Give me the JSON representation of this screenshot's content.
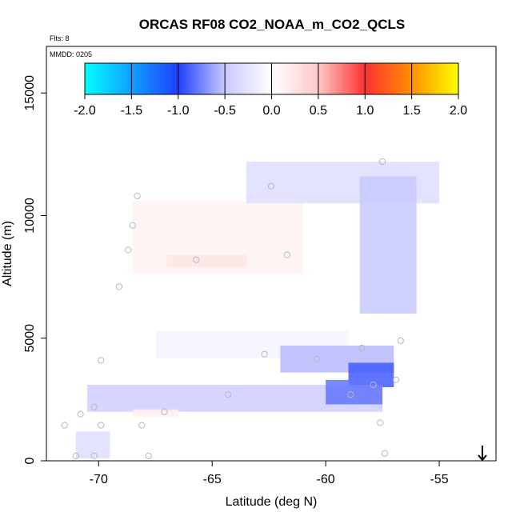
{
  "chart_data": {
    "type": "heatmap",
    "title": "ORCAS RF08 CO2_NOAA_m_CO2_QCLS",
    "flights_label": "Flts: 8",
    "date_label": "MMDD: 0205",
    "xlabel": "Latitude (deg N)",
    "ylabel": "Altitude (m)",
    "xlim": [
      -72.3,
      -52.5
    ],
    "ylim": [
      0,
      16900
    ],
    "x_ticks": [
      -70,
      -65,
      -60,
      -55
    ],
    "x_tick_labels": [
      "-70",
      "-65",
      "-60",
      "-55"
    ],
    "y_ticks": [
      0,
      5000,
      10000,
      15000
    ],
    "y_tick_labels": [
      "0",
      "5000",
      "10000",
      "15000"
    ],
    "colorbar": {
      "min": -2.0,
      "max": 2.0,
      "ticks": [
        -2.0,
        -1.5,
        -1.0,
        -0.5,
        0.0,
        0.5,
        1.0,
        1.5,
        2.0
      ],
      "tick_labels": [
        "-2.0",
        "-1.5",
        "-1.0",
        "-0.5",
        "0.0",
        "0.5",
        "1.0",
        "1.5",
        "2.0"
      ],
      "stops": [
        {
          "value": -2.0,
          "color": "#00ffff"
        },
        {
          "value": -1.0,
          "color": "#2040ff"
        },
        {
          "value": -0.5,
          "color": "#c8c8ff"
        },
        {
          "value": 0.0,
          "color": "#ffffff"
        },
        {
          "value": 0.5,
          "color": "#ffc8c8"
        },
        {
          "value": 1.0,
          "color": "#ff3030"
        },
        {
          "value": 1.5,
          "color": "#ff9000"
        },
        {
          "value": 2.0,
          "color": "#ffff00"
        }
      ]
    },
    "regions": [
      {
        "name": "upper-positive-plume",
        "lat_from": -68.5,
        "lat_to": -61.0,
        "alt_from": 7600,
        "alt_to": 10600,
        "value": 0.12
      },
      {
        "name": "upper-positive-core",
        "lat_from": -67.0,
        "lat_to": -63.5,
        "alt_from": 7900,
        "alt_to": 8400,
        "value": 0.25
      },
      {
        "name": "upper-negative-band",
        "lat_from": -63.5,
        "lat_to": -55.0,
        "alt_from": 10500,
        "alt_to": 12200,
        "value": -0.3
      },
      {
        "name": "upper-negative-tongue",
        "lat_from": -58.5,
        "lat_to": -56.0,
        "alt_from": 6000,
        "alt_to": 11600,
        "value": -0.5
      },
      {
        "name": "mid-faint-band",
        "lat_from": -67.5,
        "lat_to": -59.0,
        "alt_from": 4200,
        "alt_to": 5300,
        "value": -0.1
      },
      {
        "name": "mid-negative-layer",
        "lat_from": -62.0,
        "lat_to": -57.0,
        "alt_from": 3600,
        "alt_to": 4700,
        "value": -0.55
      },
      {
        "name": "mid-negative-core",
        "lat_from": -59.0,
        "lat_to": -57.0,
        "alt_from": 3000,
        "alt_to": 4000,
        "value": -0.9
      },
      {
        "name": "lower-negative-layer",
        "lat_from": -70.5,
        "lat_to": -57.5,
        "alt_from": 2000,
        "alt_to": 3100,
        "value": -0.45
      },
      {
        "name": "lower-negative-core",
        "lat_from": -60.0,
        "lat_to": -57.5,
        "alt_from": 2300,
        "alt_to": 3300,
        "value": -0.8
      },
      {
        "name": "lower-positive-patch",
        "lat_from": -68.5,
        "lat_to": -66.5,
        "alt_from": 1800,
        "alt_to": 2100,
        "value": 0.15
      },
      {
        "name": "near-surface-patch",
        "lat_from": -71.0,
        "lat_to": -69.5,
        "alt_from": 100,
        "alt_to": 1200,
        "value": -0.3
      }
    ],
    "sample_points": [
      [
        -71.5,
        1450
      ],
      [
        -71.0,
        200
      ],
      [
        -70.8,
        1900
      ],
      [
        -70.2,
        2200
      ],
      [
        -70.2,
        200
      ],
      [
        -69.9,
        1450
      ],
      [
        -69.9,
        4100
      ],
      [
        -69.1,
        7100
      ],
      [
        -68.7,
        8600
      ],
      [
        -68.5,
        9600
      ],
      [
        -68.3,
        10800
      ],
      [
        -68.1,
        1450
      ],
      [
        -67.8,
        200
      ],
      [
        -67.1,
        2000
      ],
      [
        -65.7,
        8200
      ],
      [
        -64.3,
        2700
      ],
      [
        -62.7,
        4350
      ],
      [
        -62.4,
        11200
      ],
      [
        -61.7,
        8400
      ],
      [
        -60.4,
        4150
      ],
      [
        -58.9,
        2700
      ],
      [
        -58.4,
        4600
      ],
      [
        -57.9,
        3100
      ],
      [
        -57.6,
        1550
      ],
      [
        -57.4,
        300
      ],
      [
        -57.5,
        12200
      ],
      [
        -56.9,
        3300
      ],
      [
        -56.7,
        4900
      ]
    ],
    "annotations": [
      {
        "type": "arrow-down",
        "lat": -53.1
      }
    ]
  }
}
